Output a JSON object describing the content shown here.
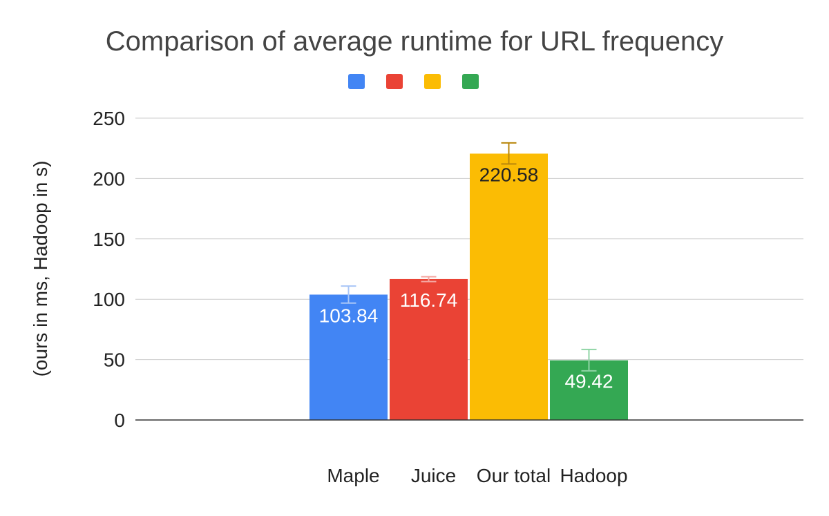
{
  "chart_data": {
    "type": "bar",
    "title": "Comparison of average runtime for URL frequency",
    "xlabel": "",
    "ylabel": "(ours in ms, Hadoop in s)",
    "ylim": [
      0,
      250
    ],
    "yticks": [
      0,
      50,
      100,
      150,
      200,
      250
    ],
    "grid": true,
    "legend": "top",
    "categories": [
      "Maple",
      "Juice",
      "Our total",
      "Hadoop"
    ],
    "values": [
      103.84,
      116.74,
      220.58,
      49.42
    ],
    "data_labels": [
      "103.84",
      "116.74",
      "220.58",
      "49.42"
    ],
    "error_bars": [
      {
        "low": 96.8,
        "high": 110.9
      },
      {
        "low": 114.6,
        "high": 118.6
      },
      {
        "low": 212.0,
        "high": 229.5
      },
      {
        "low": 40.7,
        "high": 58.4
      }
    ],
    "colors": [
      "#4285F4",
      "#EA4335",
      "#FBBC04",
      "#34A853"
    ],
    "error_colors": [
      "#A9C6F7",
      "#F4A6A0",
      "#B8860B",
      "#8FD4A5"
    ],
    "label_colors": [
      "#ffffff",
      "#ffffff",
      "#222222",
      "#ffffff"
    ]
  }
}
